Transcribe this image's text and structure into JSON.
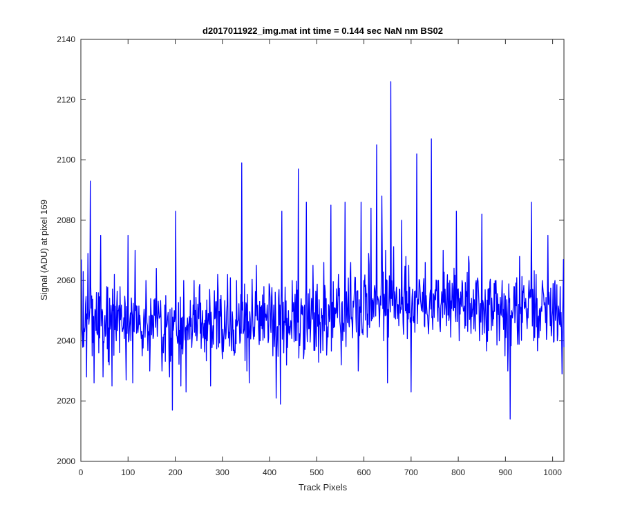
{
  "chart_data": {
    "type": "line",
    "title": "d2017011922_img.mat int time = 0.144 sec  NaN nm BS02",
    "xlabel": "Track Pixels",
    "ylabel": "Signal (ADU) at pixel 169",
    "xlim": [
      0,
      1024
    ],
    "ylim": [
      2000,
      2140
    ],
    "xticks": [
      "0",
      "100",
      "200",
      "300",
      "400",
      "500",
      "600",
      "700",
      "800",
      "900",
      "1000"
    ],
    "yticks": [
      "2000",
      "2020",
      "2040",
      "2060",
      "2080",
      "2100",
      "2120",
      "2140"
    ],
    "grid": false,
    "line_color": "#0000ff",
    "series": [
      {
        "name": "",
        "x_start": 1,
        "x_step": 1,
        "count": 1024,
        "baseline_trend": [
          [
            0,
            2046
          ],
          [
            300,
            2046
          ],
          [
            500,
            2048
          ],
          [
            600,
            2050
          ],
          [
            650,
            2055
          ],
          [
            750,
            2052
          ],
          [
            1024,
            2049
          ]
        ],
        "noise_amplitude": 9,
        "peaks": [
          [
            1,
            2067
          ],
          [
            5,
            2063
          ],
          [
            8,
            2043
          ],
          [
            12,
            2028
          ],
          [
            15,
            2069
          ],
          [
            18,
            2048
          ],
          [
            20,
            2093
          ],
          [
            24,
            2035
          ],
          [
            28,
            2026
          ],
          [
            33,
            2056
          ],
          [
            38,
            2036
          ],
          [
            42,
            2075
          ],
          [
            47,
            2028
          ],
          [
            55,
            2058
          ],
          [
            60,
            2032
          ],
          [
            66,
            2025
          ],
          [
            71,
            2062
          ],
          [
            80,
            2050
          ],
          [
            88,
            2043
          ],
          [
            96,
            2027
          ],
          [
            100,
            2075
          ],
          [
            106,
            2040
          ],
          [
            110,
            2026
          ],
          [
            115,
            2070
          ],
          [
            122,
            2045
          ],
          [
            130,
            2035
          ],
          [
            138,
            2060
          ],
          [
            146,
            2030
          ],
          [
            150,
            2042
          ],
          [
            160,
            2064
          ],
          [
            165,
            2050
          ],
          [
            172,
            2030
          ],
          [
            180,
            2055
          ],
          [
            188,
            2028
          ],
          [
            194,
            2017
          ],
          [
            198,
            2050
          ],
          [
            201,
            2083
          ],
          [
            206,
            2040
          ],
          [
            212,
            2025
          ],
          [
            218,
            2060
          ],
          [
            223,
            2023
          ],
          [
            230,
            2048
          ],
          [
            240,
            2060
          ],
          [
            246,
            2040
          ],
          [
            258,
            2050
          ],
          [
            268,
            2040
          ],
          [
            275,
            2025
          ],
          [
            282,
            2048
          ],
          [
            290,
            2062
          ],
          [
            300,
            2034
          ],
          [
            310,
            2052
          ],
          [
            320,
            2042
          ],
          [
            330,
            2060
          ],
          [
            338,
            2040
          ],
          [
            341,
            2099
          ],
          [
            346,
            2044
          ],
          [
            352,
            2030
          ],
          [
            357,
            2026
          ],
          [
            364,
            2050
          ],
          [
            372,
            2065
          ],
          [
            380,
            2040
          ],
          [
            388,
            2058
          ],
          [
            394,
            2048
          ],
          [
            400,
            2058
          ],
          [
            407,
            2035
          ],
          [
            414,
            2021
          ],
          [
            420,
            2057
          ],
          [
            423,
            2019
          ],
          [
            426,
            2083
          ],
          [
            430,
            2036
          ],
          [
            440,
            2050
          ],
          [
            448,
            2060
          ],
          [
            455,
            2040
          ],
          [
            461,
            2097
          ],
          [
            466,
            2050
          ],
          [
            472,
            2034
          ],
          [
            478,
            2086
          ],
          [
            483,
            2044
          ],
          [
            492,
            2065
          ],
          [
            500,
            2055
          ],
          [
            508,
            2036
          ],
          [
            515,
            2066
          ],
          [
            522,
            2040
          ],
          [
            530,
            2085
          ],
          [
            540,
            2049
          ],
          [
            546,
            2062
          ],
          [
            552,
            2032
          ],
          [
            560,
            2086
          ],
          [
            565,
            2046
          ],
          [
            572,
            2066
          ],
          [
            580,
            2058
          ],
          [
            588,
            2030
          ],
          [
            594,
            2086
          ],
          [
            600,
            2060
          ],
          [
            610,
            2069
          ],
          [
            615,
            2084
          ],
          [
            620,
            2052
          ],
          [
            627,
            2105
          ],
          [
            632,
            2050
          ],
          [
            638,
            2088
          ],
          [
            642,
            2040
          ],
          [
            646,
            2070
          ],
          [
            650,
            2026
          ],
          [
            657,
            2126
          ],
          [
            662,
            2060
          ],
          [
            668,
            2055
          ],
          [
            674,
            2045
          ],
          [
            680,
            2080
          ],
          [
            688,
            2050
          ],
          [
            695,
            2065
          ],
          [
            700,
            2023
          ],
          [
            705,
            2048
          ],
          [
            712,
            2102
          ],
          [
            718,
            2060
          ],
          [
            722,
            2050
          ],
          [
            730,
            2066
          ],
          [
            736,
            2045
          ],
          [
            743,
            2107
          ],
          [
            748,
            2055
          ],
          [
            755,
            2060
          ],
          [
            762,
            2043
          ],
          [
            768,
            2070
          ],
          [
            775,
            2045
          ],
          [
            782,
            2060
          ],
          [
            790,
            2050
          ],
          [
            796,
            2083
          ],
          [
            802,
            2040
          ],
          [
            808,
            2060
          ],
          [
            816,
            2045
          ],
          [
            822,
            2068
          ],
          [
            830,
            2050
          ],
          [
            838,
            2060
          ],
          [
            845,
            2040
          ],
          [
            850,
            2082
          ],
          [
            858,
            2050
          ],
          [
            866,
            2052
          ],
          [
            873,
            2045
          ],
          [
            880,
            2060
          ],
          [
            887,
            2040
          ],
          [
            893,
            2060
          ],
          [
            899,
            2035
          ],
          [
            905,
            2030
          ],
          [
            910,
            2014
          ],
          [
            913,
            2050
          ],
          [
            918,
            2058
          ],
          [
            925,
            2045
          ],
          [
            930,
            2068
          ],
          [
            938,
            2056
          ],
          [
            944,
            2050
          ],
          [
            950,
            2060
          ],
          [
            955,
            2086
          ],
          [
            960,
            2040
          ],
          [
            965,
            2062
          ],
          [
            972,
            2050
          ],
          [
            978,
            2060
          ],
          [
            985,
            2046
          ],
          [
            990,
            2075
          ],
          [
            995,
            2045
          ],
          [
            1000,
            2050
          ],
          [
            1005,
            2060
          ],
          [
            1010,
            2040
          ],
          [
            1016,
            2058
          ],
          [
            1020,
            2029
          ],
          [
            1023,
            2067
          ]
        ]
      }
    ]
  }
}
